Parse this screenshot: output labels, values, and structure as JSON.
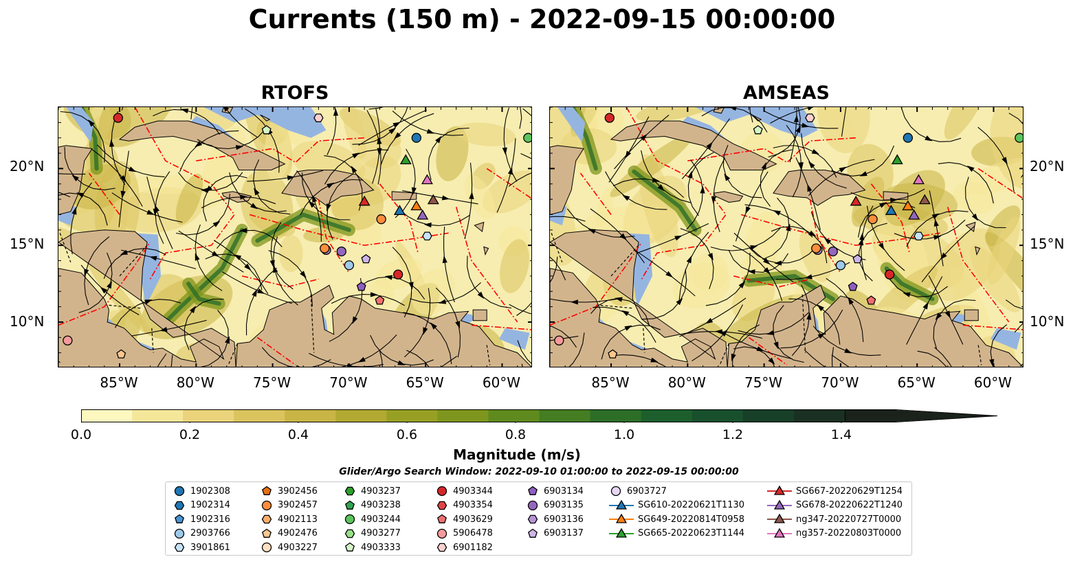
{
  "title": "Currents (150 m) - 2022-09-15 00:00:00",
  "panels": [
    {
      "title": "RTOFS"
    },
    {
      "title": "AMSEAS"
    }
  ],
  "axes": {
    "lon_labels": [
      "85°W",
      "80°W",
      "75°W",
      "70°W",
      "65°W",
      "60°W"
    ],
    "lat_labels": [
      "20°N",
      "15°N",
      "10°N"
    ]
  },
  "colorbar": {
    "label": "Magnitude (m/s)",
    "ticks": [
      "0.0",
      "0.2",
      "0.4",
      "0.6",
      "0.8",
      "1.0",
      "1.2",
      "1.4"
    ],
    "range": [
      0.0,
      1.5
    ],
    "extend": "max",
    "colors": [
      "#fdf7c0",
      "#f5e79a",
      "#ead37a",
      "#dbc35e",
      "#c9b446",
      "#b1a932",
      "#97a024",
      "#7e961d",
      "#5f8a1e",
      "#447d22",
      "#2c6e28",
      "#1c5f2c",
      "#18502d",
      "#183f28",
      "#1a3022",
      "#1a221b"
    ]
  },
  "search_window": "Glider/Argo Search Window: 2022-09-10 01:00:00 to 2022-09-15 00:00:00",
  "legend": {
    "columns": [
      [
        {
          "label": "1902308",
          "marker": "circle",
          "color": "#1f77b4"
        },
        {
          "label": "1902314",
          "marker": "hexagon",
          "color": "#1f77b4"
        },
        {
          "label": "1902316",
          "marker": "pentagon",
          "color": "#4a93d1"
        },
        {
          "label": "2903766",
          "marker": "circle",
          "color": "#9ecae9"
        },
        {
          "label": "3901861",
          "marker": "hexagon",
          "color": "#c6e3f7"
        }
      ],
      [
        {
          "label": "3902456",
          "marker": "pentagon",
          "color": "#e6700f"
        },
        {
          "label": "3902457",
          "marker": "circle",
          "color": "#fd8d3c"
        },
        {
          "label": "4902113",
          "marker": "hexagon",
          "color": "#fdae6b"
        },
        {
          "label": "4902476",
          "marker": "pentagon",
          "color": "#fdc78f"
        },
        {
          "label": "4903227",
          "marker": "circle",
          "color": "#fde0c0"
        }
      ],
      [
        {
          "label": "4903237",
          "marker": "hexagon",
          "color": "#2ca02c"
        },
        {
          "label": "4903238",
          "marker": "pentagon",
          "color": "#31a354"
        },
        {
          "label": "4903244",
          "marker": "circle",
          "color": "#5cc45c"
        },
        {
          "label": "4903277",
          "marker": "hexagon",
          "color": "#98df8a"
        },
        {
          "label": "4903333",
          "marker": "pentagon",
          "color": "#d4f5c8"
        }
      ],
      [
        {
          "label": "4903344",
          "marker": "circle",
          "color": "#d62728"
        },
        {
          "label": "4903354",
          "marker": "hexagon",
          "color": "#e04545"
        },
        {
          "label": "4903629",
          "marker": "pentagon",
          "color": "#f07070"
        },
        {
          "label": "5906478",
          "marker": "circle",
          "color": "#f59a9a"
        },
        {
          "label": "6901182",
          "marker": "hexagon",
          "color": "#fcd0d0"
        }
      ],
      [
        {
          "label": "6903134",
          "marker": "pentagon",
          "color": "#8f5fc0"
        },
        {
          "label": "6903135",
          "marker": "circle",
          "color": "#9467bd"
        },
        {
          "label": "6903136",
          "marker": "hexagon",
          "color": "#b594d6"
        },
        {
          "label": "6903137",
          "marker": "pentagon",
          "color": "#cdb5e8"
        }
      ],
      [
        {
          "label": "6903727",
          "marker": "circle",
          "color": "#e8d6f5"
        },
        {
          "label": "SG610-20220621T1130",
          "marker": "triangle-line",
          "color": "#1f77b4"
        },
        {
          "label": "SG649-20220814T0958",
          "marker": "triangle-line",
          "color": "#ff7f0e"
        },
        {
          "label": "SG665-20220623T1144",
          "marker": "triangle-line",
          "color": "#2ca02c"
        }
      ],
      [
        {
          "label": "SG667-20220629T1254",
          "marker": "triangle-line",
          "color": "#d62728"
        },
        {
          "label": "SG678-20220622T1240",
          "marker": "triangle-line",
          "color": "#9467bd"
        },
        {
          "label": "ng347-20220727T0000",
          "marker": "triangle-line",
          "color": "#8c564b"
        },
        {
          "label": "ng357-20220803T0000",
          "marker": "triangle-line",
          "color": "#e377c2"
        }
      ]
    ]
  },
  "colors": {
    "land": "#d2b48c",
    "deep_water": "#95b5e1",
    "eez_line": "#ff0000",
    "streamline": "#000000"
  },
  "map_extent": {
    "lon": [
      -89,
      -58
    ],
    "lat": [
      7,
      24
    ]
  }
}
